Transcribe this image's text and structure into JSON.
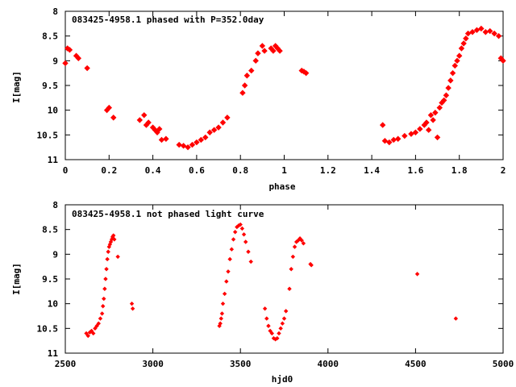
{
  "colors": {
    "points": "#ff0000",
    "axes": "#000000",
    "background": "#ffffff"
  },
  "chart_data": [
    {
      "type": "scatter",
      "title": "083425-4958.1 phased with P=352.0day",
      "xlabel": "phase",
      "ylabel": "I[mag]",
      "xlim": [
        0,
        2
      ],
      "ylim": [
        8,
        11
      ],
      "y_inverted": true,
      "grid": false,
      "xticks": [
        0,
        0.2,
        0.4,
        0.6,
        0.8,
        1,
        1.2,
        1.4,
        1.6,
        1.8,
        2
      ],
      "xtick_labels": [
        "0",
        "0.2",
        "0.4",
        "0.6",
        "0.8",
        "1",
        "1.2",
        "1.4",
        "1.6",
        "1.8",
        "2"
      ],
      "yticks": [
        8,
        8.5,
        9,
        9.5,
        10,
        10.5,
        11
      ],
      "ytick_labels": [
        "8",
        "8.5",
        "9",
        "9.5",
        "10",
        "10.5",
        "11"
      ],
      "x": [
        0.0,
        0.01,
        0.02,
        0.05,
        0.06,
        0.1,
        0.19,
        0.2,
        0.22,
        0.34,
        0.36,
        0.37,
        0.38,
        0.4,
        0.41,
        0.42,
        0.43,
        0.44,
        0.46,
        0.52,
        0.54,
        0.56,
        0.58,
        0.6,
        0.62,
        0.64,
        0.66,
        0.68,
        0.7,
        0.72,
        0.74,
        0.81,
        0.82,
        0.83,
        0.85,
        0.87,
        0.88,
        0.9,
        0.91,
        0.94,
        0.95,
        0.96,
        0.97,
        0.98,
        1.08,
        1.09,
        1.1,
        1.45,
        1.46,
        1.48,
        1.5,
        1.52,
        1.55,
        1.58,
        1.6,
        1.62,
        1.64,
        1.65,
        1.66,
        1.67,
        1.68,
        1.69,
        1.7,
        1.71,
        1.72,
        1.73,
        1.74,
        1.75,
        1.76,
        1.77,
        1.78,
        1.79,
        1.8,
        1.81,
        1.82,
        1.83,
        1.84,
        1.86,
        1.88,
        1.9,
        1.92,
        1.94,
        1.96,
        1.98,
        1.99,
        2.0
      ],
      "y": [
        9.05,
        8.75,
        8.78,
        8.9,
        8.95,
        9.15,
        10.0,
        9.95,
        10.15,
        10.2,
        10.1,
        10.3,
        10.25,
        10.35,
        10.4,
        10.45,
        10.38,
        10.6,
        10.58,
        10.7,
        10.72,
        10.75,
        10.7,
        10.65,
        10.6,
        10.55,
        10.45,
        10.4,
        10.35,
        10.25,
        10.15,
        9.65,
        9.5,
        9.3,
        9.2,
        9.0,
        8.85,
        8.7,
        8.8,
        8.75,
        8.8,
        8.7,
        8.75,
        8.8,
        9.2,
        9.22,
        9.25,
        10.3,
        10.62,
        10.65,
        10.6,
        10.58,
        10.52,
        10.48,
        10.45,
        10.38,
        10.3,
        10.25,
        10.4,
        10.1,
        10.2,
        10.05,
        10.55,
        9.95,
        9.85,
        9.8,
        9.7,
        9.55,
        9.4,
        9.25,
        9.1,
        9.0,
        8.9,
        8.75,
        8.65,
        8.55,
        8.45,
        8.42,
        8.38,
        8.35,
        8.42,
        8.4,
        8.45,
        8.5,
        8.95,
        9.0
      ]
    },
    {
      "type": "scatter",
      "title": "083425-4958.1 not phased light curve",
      "xlabel": "hjd0",
      "ylabel": "I[mag]",
      "xlim": [
        2500,
        5000
      ],
      "ylim": [
        8,
        11
      ],
      "y_inverted": true,
      "grid": false,
      "xticks": [
        2500,
        3000,
        3500,
        4000,
        4500,
        5000
      ],
      "xtick_labels": [
        "2500",
        "3000",
        "3500",
        "4000",
        "4500",
        "5000"
      ],
      "yticks": [
        8,
        8.5,
        9,
        9.5,
        10,
        10.5,
        11
      ],
      "ytick_labels": [
        "8",
        "8.5",
        "9",
        "9.5",
        "10",
        "10.5",
        "11"
      ],
      "x": [
        2620,
        2630,
        2640,
        2650,
        2660,
        2670,
        2680,
        2690,
        2700,
        2710,
        2715,
        2720,
        2725,
        2730,
        2735,
        2740,
        2745,
        2750,
        2755,
        2760,
        2765,
        2770,
        2775,
        2780,
        2800,
        2880,
        2885,
        3380,
        3385,
        3390,
        3395,
        3400,
        3410,
        3420,
        3430,
        3440,
        3450,
        3460,
        3470,
        3480,
        3490,
        3500,
        3510,
        3520,
        3530,
        3545,
        3560,
        3640,
        3650,
        3660,
        3670,
        3680,
        3690,
        3700,
        3710,
        3720,
        3730,
        3740,
        3750,
        3760,
        3780,
        3790,
        3800,
        3810,
        3820,
        3830,
        3840,
        3850,
        3860,
        3900,
        3905,
        4510,
        4730
      ],
      "y": [
        10.6,
        10.65,
        10.58,
        10.55,
        10.6,
        10.5,
        10.45,
        10.4,
        10.3,
        10.2,
        10.05,
        9.9,
        9.7,
        9.5,
        9.3,
        9.1,
        8.95,
        8.85,
        8.8,
        8.75,
        8.7,
        8.65,
        8.62,
        8.7,
        9.05,
        10.0,
        10.1,
        10.45,
        10.4,
        10.3,
        10.2,
        10.0,
        9.8,
        9.55,
        9.35,
        9.1,
        8.9,
        8.7,
        8.55,
        8.45,
        8.42,
        8.4,
        8.48,
        8.6,
        8.75,
        8.95,
        9.15,
        10.1,
        10.3,
        10.45,
        10.55,
        10.6,
        10.7,
        10.72,
        10.7,
        10.6,
        10.5,
        10.4,
        10.3,
        10.15,
        9.7,
        9.3,
        9.05,
        8.85,
        8.75,
        8.72,
        8.68,
        8.72,
        8.78,
        9.2,
        9.22,
        9.4,
        10.3
      ]
    }
  ]
}
